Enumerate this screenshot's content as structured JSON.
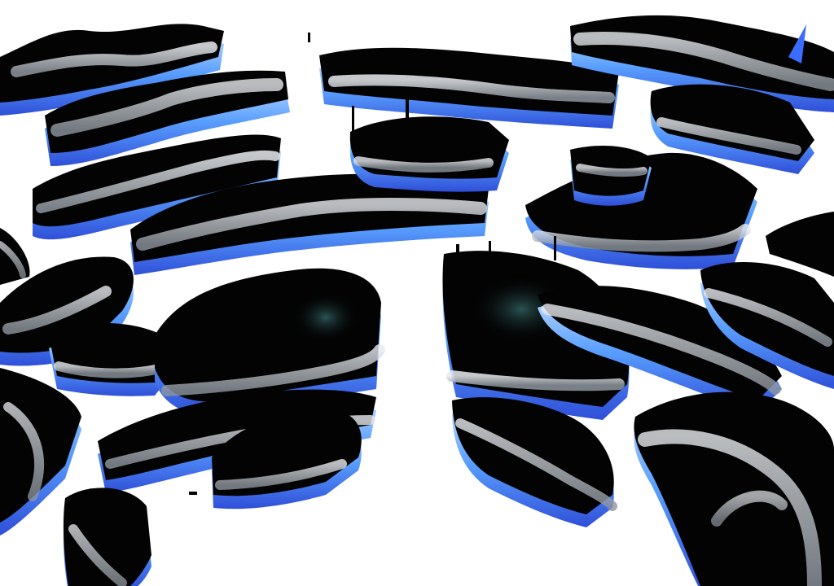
{
  "scene": {
    "background_color": "#ffffff",
    "block_fill": "#030303",
    "edge_glow": "#5aa0ff",
    "edge_glow_dark": "#2f4fd8",
    "highlight": "#dfe3ea",
    "highlight_mid": "#9aa3ac",
    "shadow_teal": "#1c3a3a",
    "outline": "#0a0a0a",
    "accent_blue": "#3a6cff"
  }
}
